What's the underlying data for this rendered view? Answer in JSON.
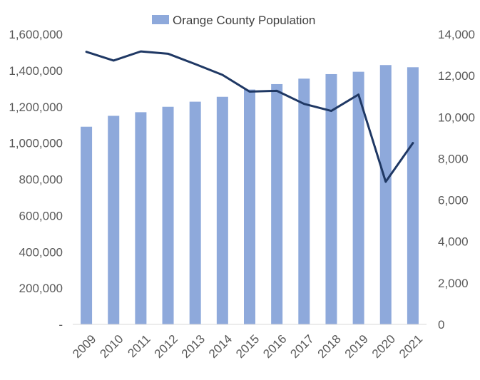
{
  "chart_data": {
    "type": "bar",
    "title": "",
    "categories": [
      "2009",
      "2010",
      "2011",
      "2012",
      "2013",
      "2014",
      "2015",
      "2016",
      "2017",
      "2018",
      "2019",
      "2020",
      "2021"
    ],
    "series": [
      {
        "name": "Orange County Population",
        "type": "bar",
        "axis": "left",
        "color": "#8EA9DB",
        "values": [
          1090000,
          1150000,
          1170000,
          1200000,
          1228000,
          1255000,
          1295000,
          1325000,
          1355000,
          1380000,
          1393000,
          1430000,
          1418000
        ]
      },
      {
        "name": "",
        "type": "line",
        "axis": "right",
        "color": "#1F3864",
        "values": [
          13150,
          12730,
          13170,
          13060,
          12560,
          12040,
          11230,
          11270,
          10640,
          10300,
          11090,
          6880,
          8750
        ]
      }
    ],
    "y_left": {
      "min": 0,
      "max": 1600000,
      "ticks": [
        "-",
        "200,000",
        "400,000",
        "600,000",
        "800,000",
        "1,000,000",
        "1,200,000",
        "1,400,000",
        "1,600,000"
      ]
    },
    "y_right": {
      "min": 0,
      "max": 14000,
      "ticks": [
        "0",
        "2,000",
        "4,000",
        "6,000",
        "8,000",
        "10,000",
        "12,000",
        "14,000"
      ]
    },
    "legend": {
      "label": "Orange County Population",
      "position": "top"
    },
    "xlabel": "",
    "ylabel": "",
    "grid": false
  }
}
